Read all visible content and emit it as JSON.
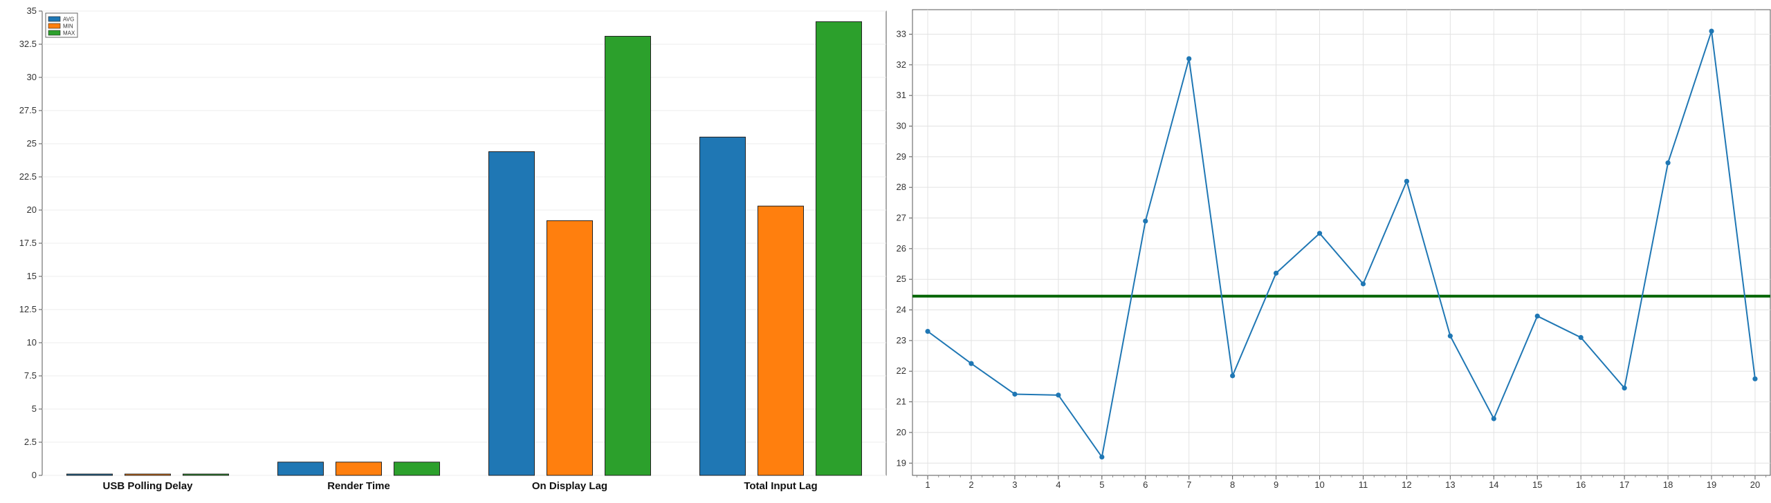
{
  "chart_data": [
    {
      "type": "bar",
      "categories": [
        "USB Polling Delay",
        "Render Time",
        "On Display Lag",
        "Total Input Lag"
      ],
      "series": [
        {
          "name": "AVG",
          "values": [
            0.1,
            1.0,
            24.4,
            25.5
          ],
          "color": "#1f77b4"
        },
        {
          "name": "MIN",
          "values": [
            0.1,
            1.0,
            19.2,
            20.3
          ],
          "color": "#ff7f0e"
        },
        {
          "name": "MAX",
          "values": [
            0.1,
            1.0,
            33.1,
            34.2
          ],
          "color": "#2ca02c"
        }
      ],
      "yticks": [
        "0",
        "2.5",
        "5",
        "7.5",
        "10",
        "12.5",
        "15",
        "17.5",
        "20",
        "22.5",
        "25",
        "27.5",
        "30",
        "32.5",
        "35"
      ],
      "ylim": [
        0,
        35
      ],
      "grid": true,
      "legend_position": "top-left"
    },
    {
      "type": "line",
      "x": [
        1,
        2,
        3,
        4,
        5,
        6,
        7,
        8,
        9,
        10,
        11,
        12,
        13,
        14,
        15,
        16,
        17,
        18,
        19,
        20
      ],
      "series": [
        {
          "values": [
            23.3,
            22.25,
            21.25,
            21.22,
            19.2,
            26.9,
            32.2,
            21.85,
            25.2,
            26.5,
            24.85,
            28.2,
            23.15,
            20.45,
            23.8,
            23.1,
            21.45,
            28.8,
            33.1,
            21.75
          ],
          "color": "#1f77b4"
        }
      ],
      "reference_line": {
        "value": 24.45,
        "color": "#006400"
      },
      "yticks": [
        "19",
        "20",
        "21",
        "22",
        "23",
        "24",
        "25",
        "26",
        "27",
        "28",
        "29",
        "30",
        "31",
        "32",
        "33"
      ],
      "ylim": [
        18.6,
        33.8
      ],
      "xlim": [
        0.65,
        20.35
      ],
      "grid": true
    }
  ]
}
